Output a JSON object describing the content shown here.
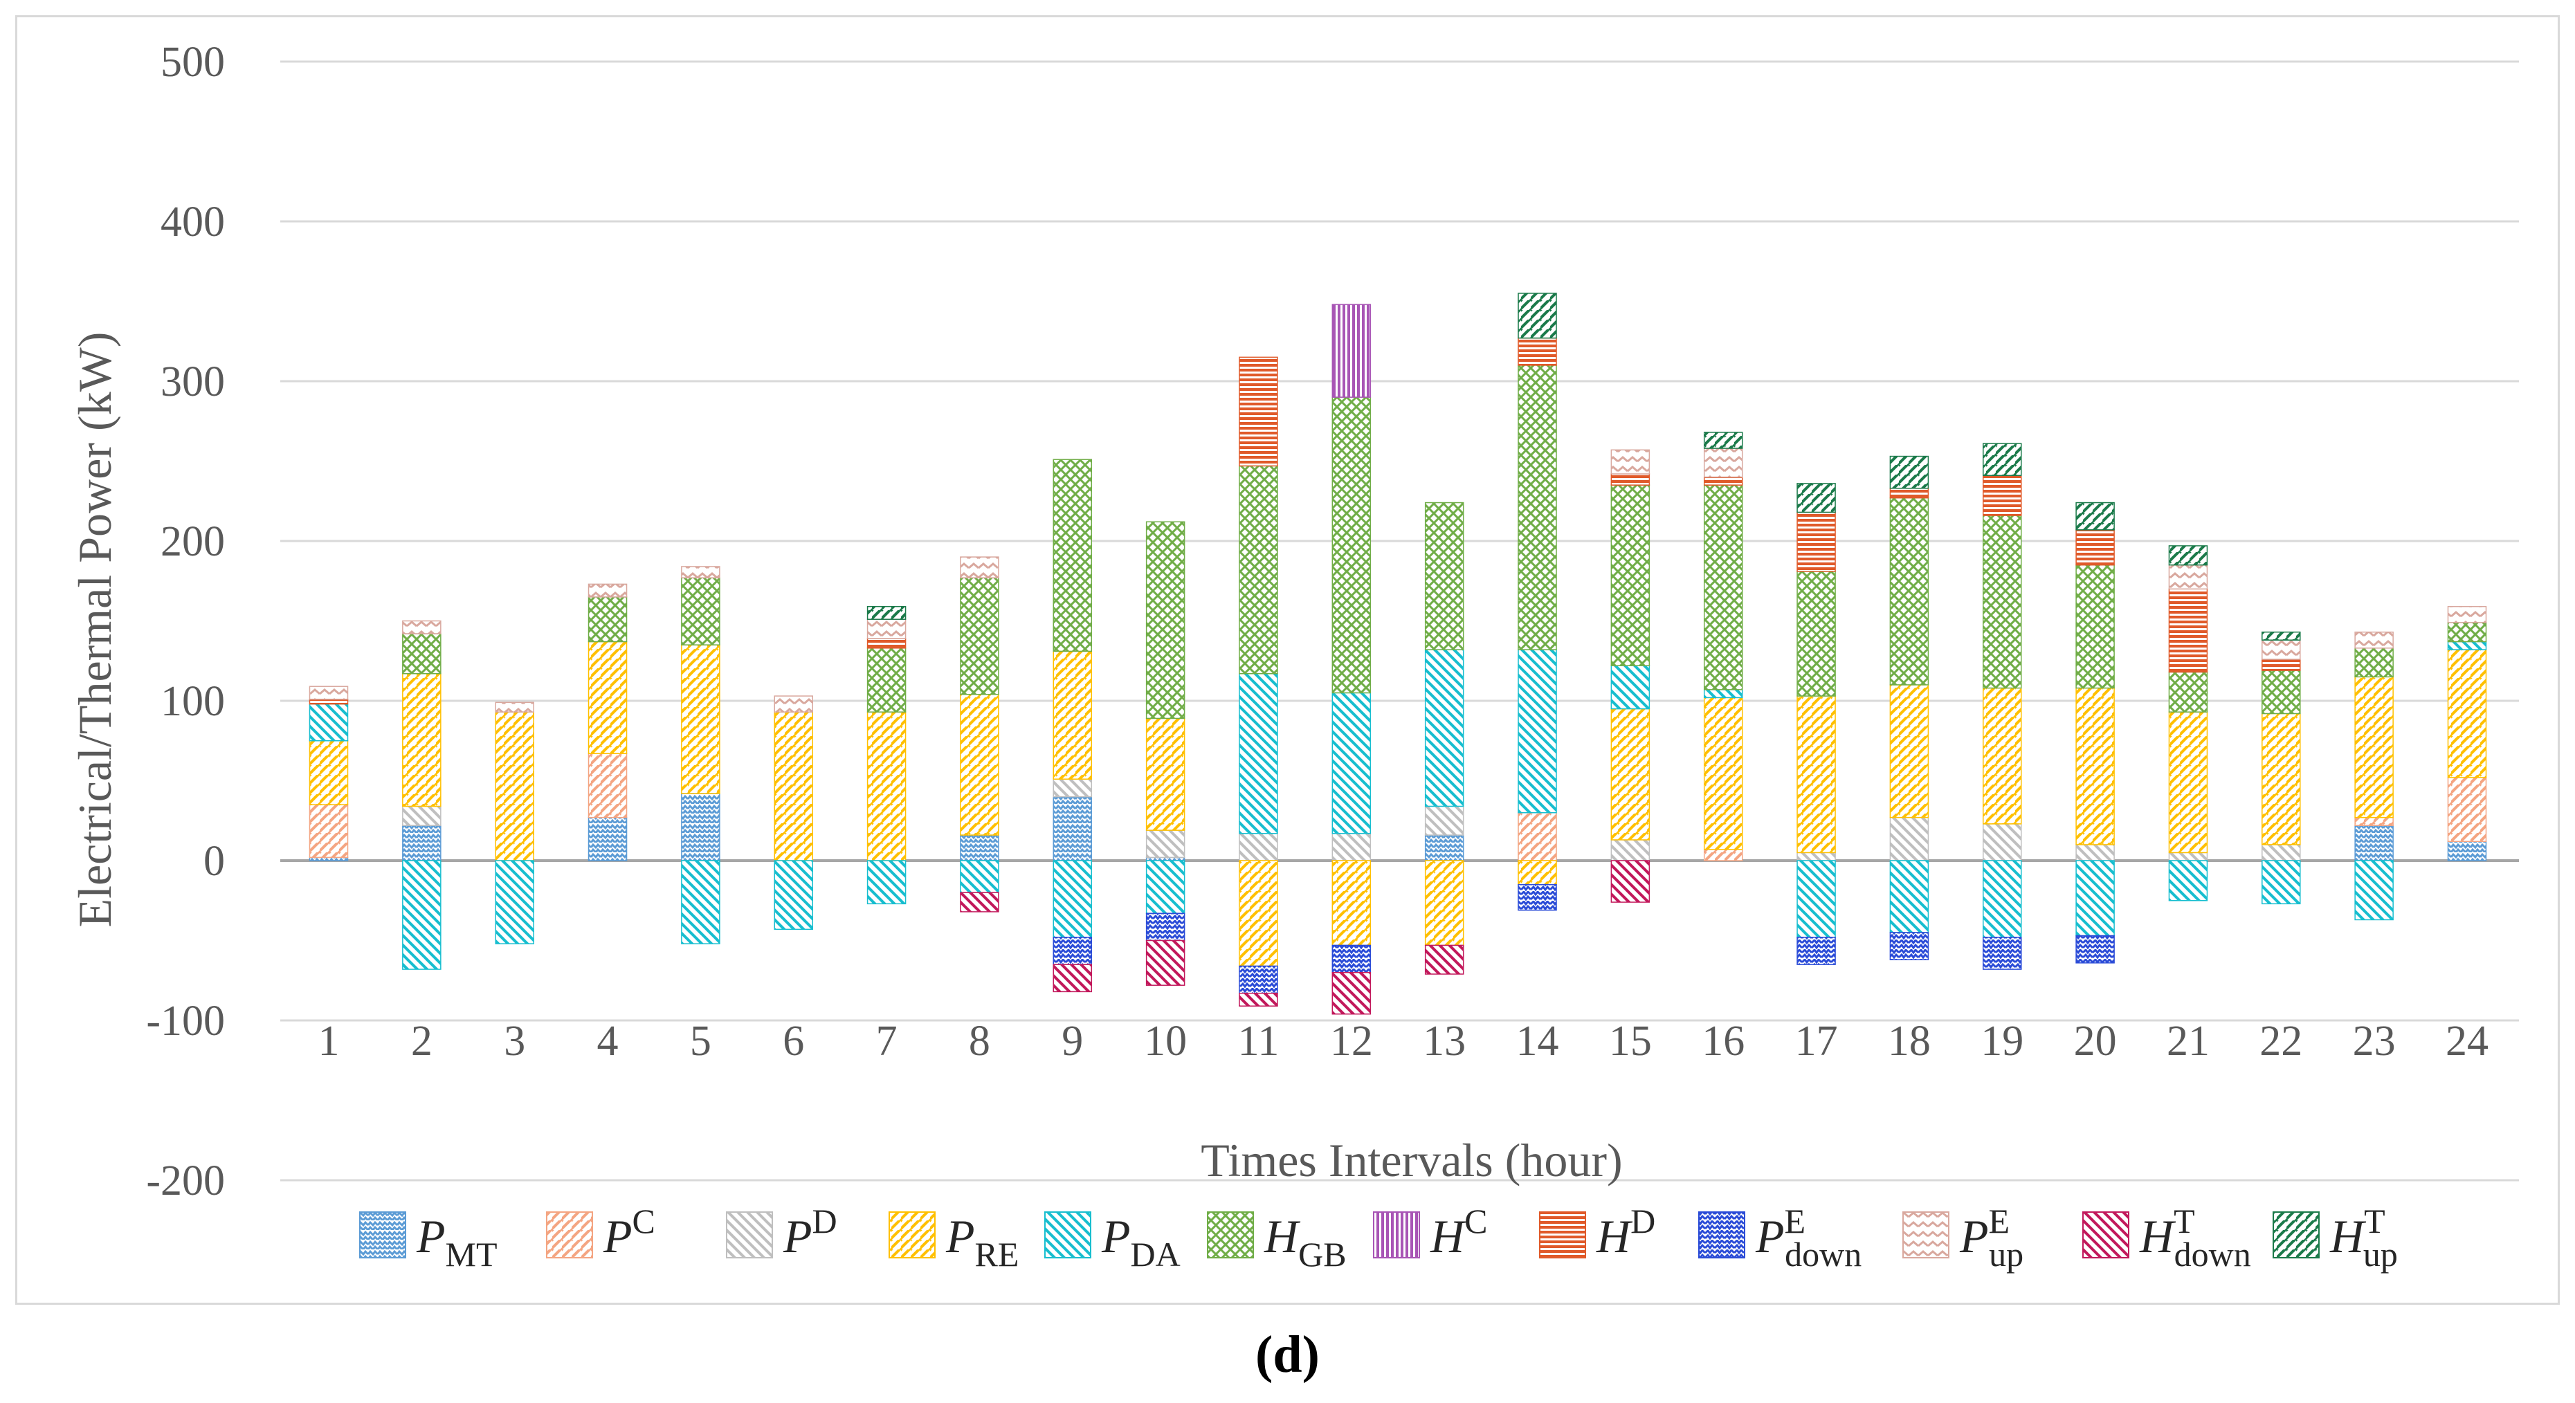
{
  "chart_data": {
    "type": "bar",
    "stacked": true,
    "title": "",
    "xlabel": "Times Intervals (hour)",
    "ylabel": "Electrical/Thermal Power (kW)",
    "ylim": [
      -200,
      500
    ],
    "yticks": [
      -200,
      -100,
      0,
      100,
      200,
      300,
      400,
      500
    ],
    "categories": [
      "1",
      "2",
      "3",
      "4",
      "5",
      "6",
      "7",
      "8",
      "9",
      "10",
      "11",
      "12",
      "13",
      "14",
      "15",
      "16",
      "17",
      "18",
      "19",
      "20",
      "21",
      "22",
      "23",
      "24"
    ],
    "legend_position": "bottom",
    "series": [
      {
        "name": "P_MT",
        "base": "P",
        "sub": "MT",
        "sup": "",
        "color": "#5b9bd5",
        "pattern": "wave",
        "values": [
          2,
          22,
          0,
          27,
          42,
          0,
          0,
          16,
          40,
          2,
          0,
          0,
          16,
          0,
          0,
          0,
          0,
          0,
          0,
          0,
          0,
          0,
          22,
          12
        ]
      },
      {
        "name": "P^C",
        "base": "P",
        "sub": "",
        "sup": "C",
        "color": "#f4a582",
        "pattern": "diag",
        "values": [
          33,
          0,
          0,
          40,
          0,
          0,
          0,
          0,
          0,
          0,
          0,
          0,
          0,
          30,
          0,
          7,
          0,
          0,
          0,
          0,
          0,
          0,
          5,
          40
        ]
      },
      {
        "name": "P^D",
        "base": "P",
        "sub": "",
        "sup": "D",
        "color": "#bfbfbf",
        "pattern": "back",
        "values": [
          0,
          12,
          0,
          0,
          0,
          0,
          0,
          0,
          11,
          17,
          17,
          17,
          18,
          0,
          13,
          0,
          5,
          27,
          23,
          10,
          5,
          10,
          0,
          0
        ]
      },
      {
        "name": "P_RE",
        "base": "P",
        "sub": "RE",
        "sup": "",
        "color": "#ffc000",
        "pattern": "diag",
        "values": [
          40,
          83,
          93,
          70,
          93,
          93,
          93,
          88,
          80,
          70,
          -66,
          -53,
          -53,
          -15,
          82,
          95,
          98,
          83,
          85,
          98,
          88,
          82,
          88,
          80
        ]
      },
      {
        "name": "P_DA",
        "base": "P",
        "sub": "DA",
        "sup": "",
        "color": "#17becf",
        "pattern": "back",
        "values": [
          23,
          -68,
          -52,
          0,
          -52,
          -43,
          -27,
          -20,
          -48,
          -33,
          100,
          88,
          98,
          102,
          27,
          5,
          -48,
          -45,
          -48,
          -47,
          -25,
          -27,
          -37,
          5
        ]
      },
      {
        "name": "H_GB",
        "base": "H",
        "sub": "GB",
        "sup": "",
        "color": "#70ad47",
        "pattern": "cross",
        "values": [
          0,
          25,
          0,
          28,
          42,
          0,
          40,
          73,
          120,
          123,
          130,
          185,
          92,
          178,
          113,
          128,
          78,
          117,
          108,
          77,
          25,
          27,
          18,
          12
        ]
      },
      {
        "name": "H^C",
        "base": "H",
        "sub": "",
        "sup": "C",
        "color": "#a855b5",
        "pattern": "vert",
        "values": [
          0,
          0,
          0,
          0,
          0,
          0,
          0,
          0,
          0,
          0,
          0,
          58,
          0,
          0,
          0,
          0,
          0,
          0,
          0,
          0,
          0,
          0,
          0,
          0
        ]
      },
      {
        "name": "H^D",
        "base": "H",
        "sub": "",
        "sup": "D",
        "color": "#e05a2a",
        "pattern": "horiz",
        "values": [
          3,
          0,
          0,
          0,
          0,
          0,
          6,
          0,
          0,
          0,
          68,
          0,
          0,
          17,
          7,
          5,
          37,
          6,
          25,
          22,
          52,
          7,
          0,
          0
        ]
      },
      {
        "name": "P^E_down",
        "base": "P",
        "sub": "down",
        "sup": "E",
        "color": "#2a4bd7",
        "pattern": "zigzag",
        "values": [
          0,
          0,
          0,
          0,
          0,
          0,
          0,
          0,
          -17,
          -17,
          -17,
          -17,
          0,
          -16,
          0,
          0,
          -17,
          -17,
          -20,
          -17,
          0,
          0,
          0,
          0
        ]
      },
      {
        "name": "P^E_up",
        "base": "P",
        "sub": "up",
        "sup": "E",
        "color": "#d9a89e",
        "pattern": "chevron",
        "values": [
          8,
          8,
          6,
          8,
          7,
          10,
          12,
          13,
          0,
          0,
          0,
          0,
          0,
          0,
          15,
          18,
          0,
          0,
          0,
          0,
          15,
          12,
          10,
          10
        ]
      },
      {
        "name": "H^T_down",
        "base": "H",
        "sub": "down",
        "sup": "T",
        "color": "#c2185b",
        "pattern": "back",
        "values": [
          0,
          0,
          0,
          0,
          0,
          0,
          0,
          -12,
          -17,
          -28,
          -8,
          -26,
          -18,
          0,
          -26,
          0,
          0,
          0,
          0,
          0,
          0,
          0,
          0,
          0
        ]
      },
      {
        "name": "H^T_up",
        "base": "H",
        "sub": "up",
        "sup": "T",
        "color": "#1b7a4a",
        "pattern": "diag",
        "values": [
          0,
          0,
          0,
          0,
          0,
          0,
          8,
          0,
          0,
          0,
          0,
          0,
          0,
          28,
          0,
          10,
          18,
          20,
          20,
          17,
          12,
          5,
          0,
          0
        ]
      }
    ]
  },
  "panel_label": "(d)"
}
